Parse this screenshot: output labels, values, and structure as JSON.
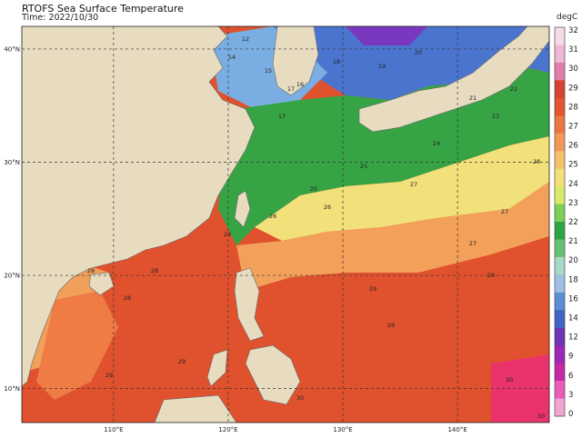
{
  "header": {
    "title": "RTOFS Sea Surface Temperature",
    "subtitle": "Time: 2022/10/30",
    "units": "degC"
  },
  "map": {
    "lon_ticks": [
      "110°E",
      "120°E",
      "130°E",
      "140°E"
    ],
    "lat_ticks": [
      "40°N",
      "30°N",
      "20°N",
      "10°N"
    ],
    "lon_range": [
      102,
      148
    ],
    "lat_range": [
      7,
      42
    ],
    "grid": "dashed",
    "land_color": "#e8dcc0",
    "contour_labels": [
      "12",
      "14",
      "15",
      "16",
      "17",
      "17",
      "18",
      "19",
      "20",
      "21",
      "22",
      "23",
      "24",
      "25",
      "25",
      "26",
      "26",
      "27",
      "27",
      "27",
      "28",
      "28",
      "28",
      "28",
      "29",
      "29",
      "29",
      "29",
      "29",
      "29",
      "30",
      "30",
      "30"
    ]
  },
  "colorbar": {
    "ticks": [
      "32",
      "31",
      "30",
      "29",
      "28",
      "27",
      "26",
      "25",
      "24",
      "23",
      "22",
      "21",
      "20",
      "18",
      "16",
      "14",
      "12",
      "9",
      "6",
      "3",
      "0"
    ],
    "colors": [
      "#f3dbe9",
      "#f0b8d4",
      "#e47cac",
      "#d8432f",
      "#e3552f",
      "#ec7640",
      "#f29a55",
      "#f7c06e",
      "#f3e07a",
      "#d7ea6e",
      "#7fcf55",
      "#2fa443",
      "#63c273",
      "#a8d8c6",
      "#9ec0e6",
      "#5c8ed5",
      "#4263c7",
      "#6e33b6",
      "#9b29b4",
      "#c728a6",
      "#e95cb9",
      "#f2a4d2"
    ]
  }
}
